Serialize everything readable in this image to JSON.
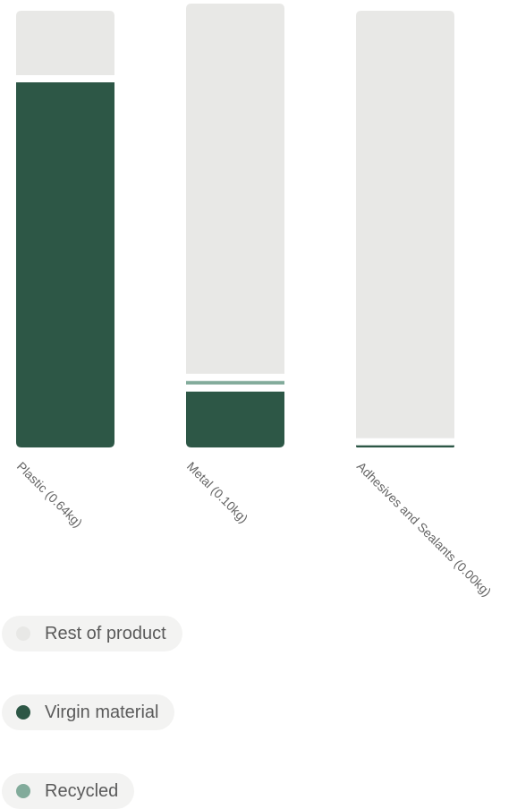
{
  "chart_data": {
    "type": "bar",
    "stacked": true,
    "normalized": true,
    "categories": [
      "Plastic (0.64kg)",
      "Metal (0.10kg)",
      "Adhesives and Sealants (0.00kg)"
    ],
    "series": [
      {
        "name": "Virgin material",
        "color": "#2d5746",
        "values": [
          0.85,
          0.13,
          0.005
        ]
      },
      {
        "name": "Recycled",
        "color": "#82ab9b",
        "values": [
          0.0,
          0.008,
          0.0
        ]
      },
      {
        "name": "Rest of product",
        "color": "#e8e8e6",
        "values": [
          0.15,
          0.862,
          0.995
        ]
      }
    ],
    "ylim": [
      0,
      1
    ],
    "grid": false,
    "legend_position": "bottom-left",
    "title": "",
    "xlabel": "",
    "ylabel": ""
  },
  "legend": {
    "items": [
      {
        "label": "Rest of product",
        "color": "#e8e8e6"
      },
      {
        "label": "Virgin material",
        "color": "#2d5746"
      },
      {
        "label": "Recycled",
        "color": "#82ab9b"
      }
    ]
  }
}
